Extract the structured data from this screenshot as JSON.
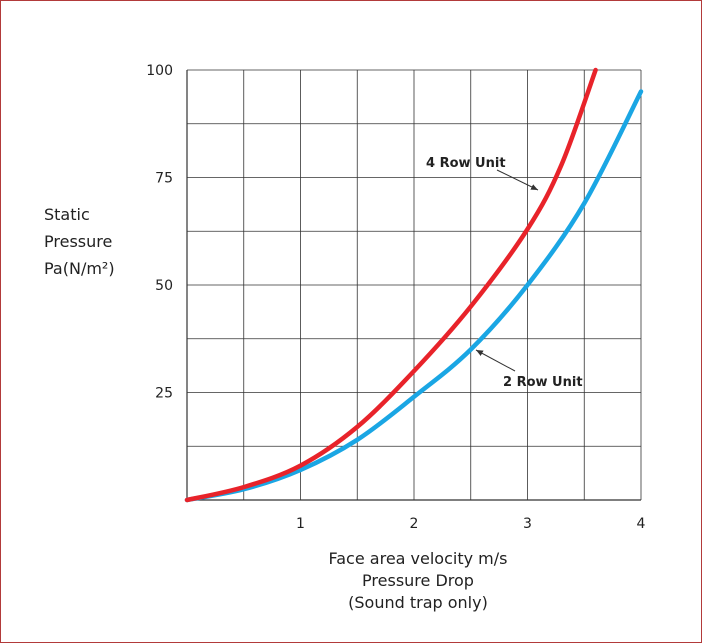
{
  "chart_data": {
    "type": "line",
    "xlabel": [
      "Face area velocity m/s",
      "Pressure Drop",
      "(Sound trap only)"
    ],
    "ylabel": [
      "Static",
      "Pressure",
      "Pa(N/m²)"
    ],
    "xlim": [
      0,
      4
    ],
    "ylim": [
      0,
      100
    ],
    "x_ticks": [
      "1",
      "2",
      "3",
      "4"
    ],
    "y_ticks": [
      "25",
      "50",
      "75",
      "100"
    ],
    "grid": true,
    "series": [
      {
        "name": "4 Row Unit",
        "color": "#e8232a",
        "x": [
          0,
          0.5,
          1.0,
          1.5,
          2.0,
          2.5,
          3.0,
          3.3,
          3.6
        ],
        "y": [
          0,
          3,
          8,
          17,
          30,
          45,
          63,
          78,
          100
        ]
      },
      {
        "name": "2 Row Unit",
        "color": "#1aa6e4",
        "x": [
          0,
          0.5,
          1.0,
          1.5,
          2.0,
          2.5,
          3.0,
          3.5,
          4.0
        ],
        "y": [
          0,
          2.5,
          7,
          14,
          24,
          35,
          50,
          69,
          95
        ]
      }
    ],
    "annotations": [
      {
        "text": "4 Row Unit",
        "series": 0
      },
      {
        "text": "2 Row Unit",
        "series": 1
      }
    ]
  },
  "colors": {
    "frame": "#b23a3a",
    "grid": "#333333",
    "arrow": "#333333"
  }
}
